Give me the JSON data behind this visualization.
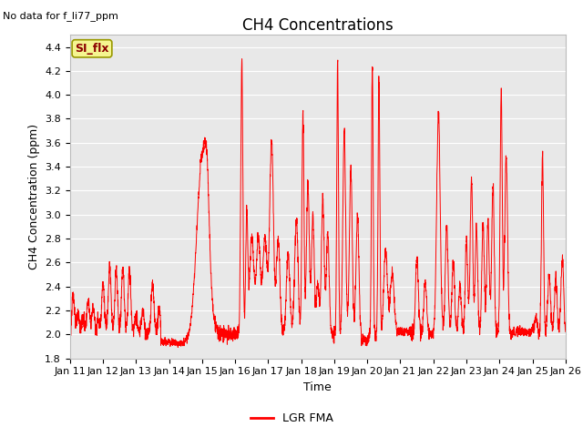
{
  "title": "CH4 Concentrations",
  "xlabel": "Time",
  "ylabel": "CH4 Concentration (ppm)",
  "no_data_text": "No data for f_li77_ppm",
  "legend_label": "LGR FMA",
  "annotation_text": "SI_flx",
  "ylim": [
    1.8,
    4.5
  ],
  "line_color": "#ff0000",
  "plot_bg_color": "#e8e8e8",
  "title_fontsize": 12,
  "axis_fontsize": 9,
  "tick_fontsize": 8,
  "num_days": 15,
  "start_day": 11
}
